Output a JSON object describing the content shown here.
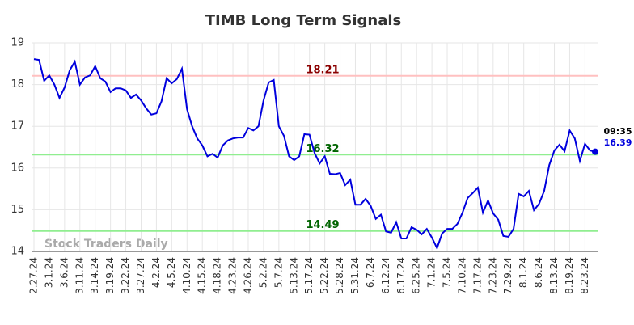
{
  "chart_data": {
    "type": "line",
    "title": "TIMB Long Term Signals",
    "watermark": "Stock Traders Daily",
    "x": [
      "2.27.24",
      null,
      null,
      "3.1.24",
      null,
      null,
      "3.6.24",
      null,
      null,
      "3.11.24",
      null,
      null,
      "3.14.24",
      null,
      null,
      "3.19.24",
      null,
      null,
      "3.22.24",
      null,
      null,
      "3.27.24",
      null,
      null,
      "4.2.24",
      null,
      null,
      "4.5.24",
      null,
      null,
      "4.10.24",
      null,
      null,
      "4.15.24",
      null,
      null,
      "4.18.24",
      null,
      null,
      "4.23.24",
      null,
      null,
      "4.26.24",
      null,
      null,
      "5.2.24",
      null,
      null,
      "5.7.24",
      null,
      null,
      "5.13.24",
      null,
      null,
      "5.17.24",
      null,
      null,
      "5.22.24",
      null,
      null,
      "5.28.24",
      null,
      null,
      "5.31.24",
      null,
      null,
      "6.7.24",
      null,
      null,
      "6.12.24",
      null,
      null,
      "6.17.24",
      null,
      null,
      "6.25.24",
      null,
      null,
      "7.1.24",
      null,
      null,
      "7.5.24",
      null,
      null,
      "7.10.24",
      null,
      null,
      "7.17.24",
      null,
      null,
      "7.23.24",
      null,
      null,
      "7.29.24",
      null,
      null,
      "8.1.24",
      null,
      null,
      "8.6.24",
      null,
      null,
      "8.13.24",
      null,
      null,
      "8.19.24",
      null,
      null,
      "8.23.24",
      null,
      null
    ],
    "series": [
      {
        "color": "#0000dd",
        "values": [
          18.61,
          18.59,
          18.09,
          18.22,
          18.0,
          17.68,
          17.93,
          18.34,
          18.55,
          18.0,
          18.17,
          18.22,
          18.44,
          18.15,
          18.07,
          17.82,
          17.91,
          17.91,
          17.86,
          17.68,
          17.76,
          17.62,
          17.43,
          17.28,
          17.31,
          17.6,
          18.15,
          18.03,
          18.13,
          18.38,
          17.41,
          17.0,
          16.71,
          16.54,
          16.28,
          16.34,
          16.25,
          16.54,
          16.66,
          16.71,
          16.73,
          16.73,
          16.96,
          16.9,
          17.0,
          17.62,
          18.05,
          18.11,
          17.0,
          16.77,
          16.28,
          16.19,
          16.28,
          16.81,
          16.8,
          16.36,
          16.11,
          16.28,
          15.86,
          15.85,
          15.88,
          15.59,
          15.72,
          15.12,
          15.12,
          15.26,
          15.09,
          14.78,
          14.88,
          14.48,
          14.45,
          14.7,
          14.31,
          14.31,
          14.58,
          14.52,
          14.41,
          14.54,
          14.33,
          14.08,
          14.43,
          14.54,
          14.54,
          14.66,
          14.93,
          15.28,
          15.4,
          15.53,
          14.93,
          15.22,
          14.91,
          14.76,
          14.37,
          14.35,
          14.54,
          15.38,
          15.32,
          15.45,
          14.99,
          15.14,
          15.45,
          16.07,
          16.42,
          16.56,
          16.4,
          16.9,
          16.71,
          16.17,
          16.58,
          16.42,
          16.39
        ]
      }
    ],
    "last_time": "09:35",
    "hlines": [
      {
        "value": 18.21,
        "color": "#ffc0c0",
        "text_color": "#8b0000"
      },
      {
        "value": 16.32,
        "color": "#90ee90",
        "text_color": "#006400"
      },
      {
        "value": 14.49,
        "color": "#90ee90",
        "text_color": "#006400"
      }
    ],
    "ylim": [
      14,
      19
    ],
    "yticks": [
      14,
      15,
      16,
      17,
      18,
      19
    ],
    "grid": true
  }
}
